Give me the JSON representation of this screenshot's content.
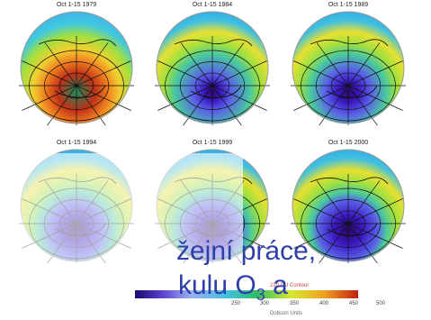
{
  "panels": [
    {
      "label": "Oct 1-15 1979",
      "hole": 0.0
    },
    {
      "label": "Oct 1-15 1984",
      "hole": 0.55
    },
    {
      "label": "Oct 1-15 1989",
      "hole": 0.7
    },
    {
      "label": "Oct 1-15 1994",
      "hole": 0.85
    },
    {
      "label": "Oct 1-15 1999",
      "hole": 0.85
    },
    {
      "label": "Oct 1-15 2000",
      "hole": 0.95
    }
  ],
  "overlay_text": {
    "line1": "žejní práce,",
    "line2": "kulu O",
    "line2_sub": "3",
    "line2_end": " a"
  },
  "colorbar": {
    "contour_label": "220 DU Contour",
    "units_label": "Dobson Units",
    "ticks": [
      "250",
      "300",
      "350",
      "400",
      "450",
      "500"
    ]
  }
}
